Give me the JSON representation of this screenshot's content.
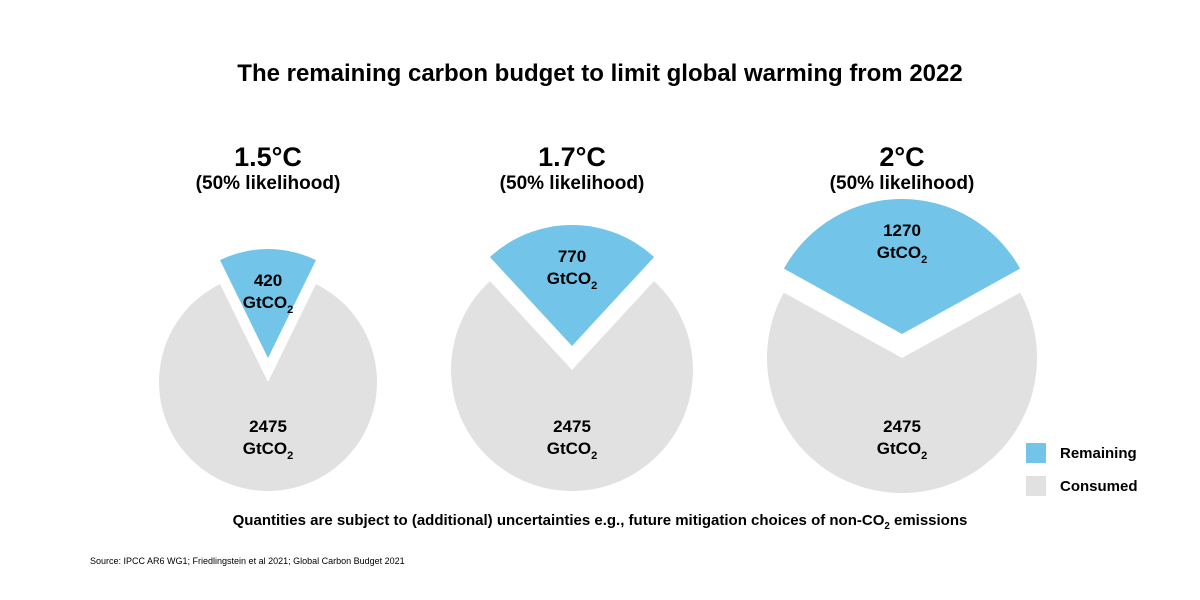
{
  "chart_data": {
    "type": "pie",
    "title": "The remaining carbon budget to limit global warming from 2022",
    "unit": "GtCO2",
    "legend": {
      "placement": "bottom-right",
      "entries": [
        "Remaining",
        "Consumed"
      ]
    },
    "colors": {
      "Remaining": "#72c4e8",
      "Consumed": "#e1e1e1"
    },
    "pies": [
      {
        "title": "1.5°C",
        "subtitle": "(50% likelihood)",
        "slices": [
          {
            "name": "Remaining",
            "value": 420,
            "label": "420"
          },
          {
            "name": "Consumed",
            "value": 2475,
            "label": "2475"
          }
        ]
      },
      {
        "title": "1.7°C",
        "subtitle": "(50% likelihood)",
        "slices": [
          {
            "name": "Remaining",
            "value": 770,
            "label": "770"
          },
          {
            "name": "Consumed",
            "value": 2475,
            "label": "2475"
          }
        ]
      },
      {
        "title": "2°C",
        "subtitle": "(50% likelihood)",
        "slices": [
          {
            "name": "Remaining",
            "value": 1270,
            "label": "1270"
          },
          {
            "name": "Consumed",
            "value": 2475,
            "label": "2475"
          }
        ]
      }
    ],
    "note": "Quantities are subject to (additional) uncertainties e.g., future mitigation choices of non-CO",
    "note_sub": "2",
    "note_end": " emissions",
    "source": "Source: IPCC AR6 WG1; Friedlingstein et al 2021; Global Carbon Budget 2021"
  }
}
